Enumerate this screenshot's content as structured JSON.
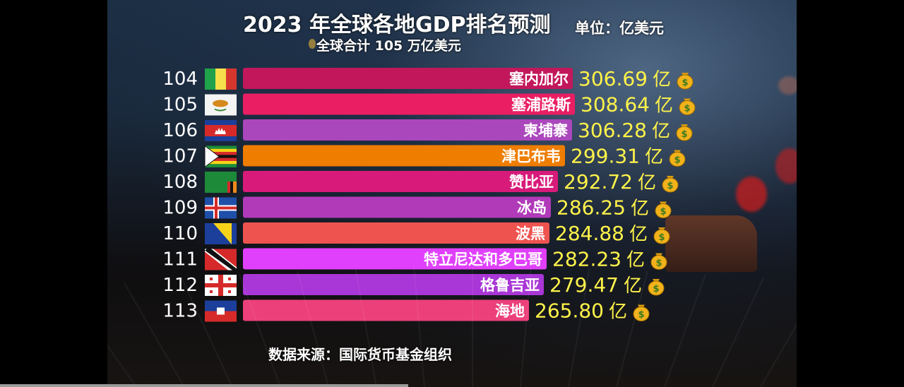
{
  "chart_data": {
    "type": "bar",
    "title": "2023 年全球各地GDP排名预测",
    "subtitle": "全球合计 105 万亿美元",
    "unit_label": "单位：亿美元",
    "source": "数据来源：国际货币基金组织",
    "value_suffix": "亿",
    "xlim": [
      0,
      400
    ],
    "rows": [
      {
        "rank": "104",
        "name": "塞内加尔",
        "value": 306.69,
        "value_text": "306.69",
        "color": "#c2185b"
      },
      {
        "rank": "105",
        "name": "塞浦路斯",
        "value": 308.64,
        "value_text": "308.64",
        "color": "#e91e63"
      },
      {
        "rank": "106",
        "name": "柬埔寨",
        "value": 306.28,
        "value_text": "306.28",
        "color": "#ab47bc"
      },
      {
        "rank": "107",
        "name": "津巴布韦",
        "value": 299.31,
        "value_text": "299.31",
        "color": "#ef7d00"
      },
      {
        "rank": "108",
        "name": "赞比亚",
        "value": 292.72,
        "value_text": "292.72",
        "color": "#d81b7a"
      },
      {
        "rank": "109",
        "name": "冰岛",
        "value": 286.25,
        "value_text": "286.25",
        "color": "#b03ab8"
      },
      {
        "rank": "110",
        "name": "波黑",
        "value": 284.88,
        "value_text": "284.88",
        "color": "#ef5350"
      },
      {
        "rank": "111",
        "name": "特立尼达和多巴哥",
        "value": 282.23,
        "value_text": "282.23",
        "color": "#e040fb"
      },
      {
        "rank": "112",
        "name": "格鲁吉亚",
        "value": 279.47,
        "value_text": "279.47",
        "color": "#a936d6"
      },
      {
        "rank": "113",
        "name": "海地",
        "value": 265.8,
        "value_text": "265.80",
        "color": "#ec407a"
      }
    ],
    "value_text_color": "#fff34a",
    "icon": "money-bag-icon"
  }
}
